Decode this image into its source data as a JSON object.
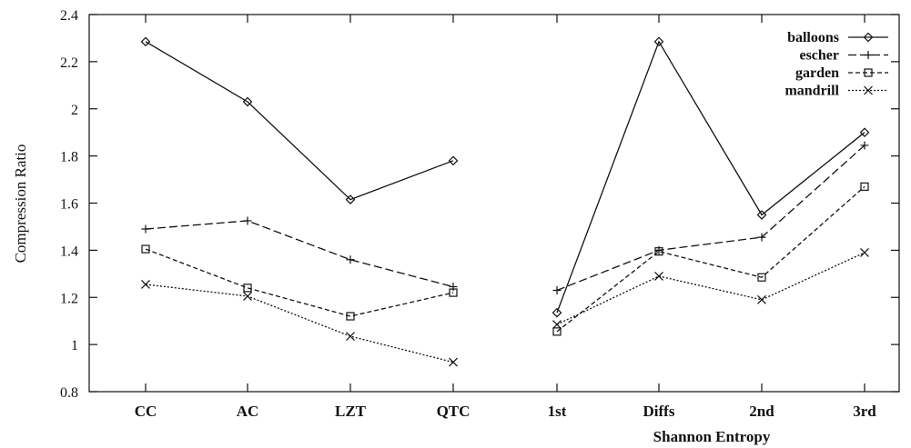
{
  "chart_data": {
    "type": "line",
    "title": "",
    "xlabel": "Shannon Entropy",
    "ylabel": "Compression Ratio",
    "categories": [
      "CC",
      "AC",
      "LZT",
      "QTC",
      "1st",
      "Diffs",
      "2nd",
      "3rd"
    ],
    "segments": [
      [
        0,
        1,
        2,
        3
      ],
      [
        4,
        5,
        6,
        7
      ]
    ],
    "ylim": [
      0.8,
      2.4
    ],
    "yticks": [
      "0.8",
      "1",
      "1.2",
      "1.4",
      "1.6",
      "1.8",
      "2",
      "2.2",
      "2.4"
    ],
    "legend_position": "top-right",
    "grid": false,
    "series": [
      {
        "name": "balloons",
        "marker": "diamond",
        "dash": "solid",
        "values": [
          2.285,
          2.03,
          1.615,
          1.78,
          1.135,
          2.285,
          1.55,
          1.9
        ]
      },
      {
        "name": "escher",
        "marker": "plus",
        "dash": "dashed",
        "values": [
          1.49,
          1.525,
          1.36,
          1.245,
          1.23,
          1.4,
          1.455,
          1.845
        ]
      },
      {
        "name": "garden",
        "marker": "square",
        "dash": "short-dashed",
        "values": [
          1.405,
          1.24,
          1.12,
          1.22,
          1.055,
          1.395,
          1.285,
          1.67
        ]
      },
      {
        "name": "mandrill",
        "marker": "x",
        "dash": "dotted",
        "values": [
          1.255,
          1.205,
          1.035,
          0.925,
          1.085,
          1.29,
          1.19,
          1.39
        ]
      }
    ]
  }
}
